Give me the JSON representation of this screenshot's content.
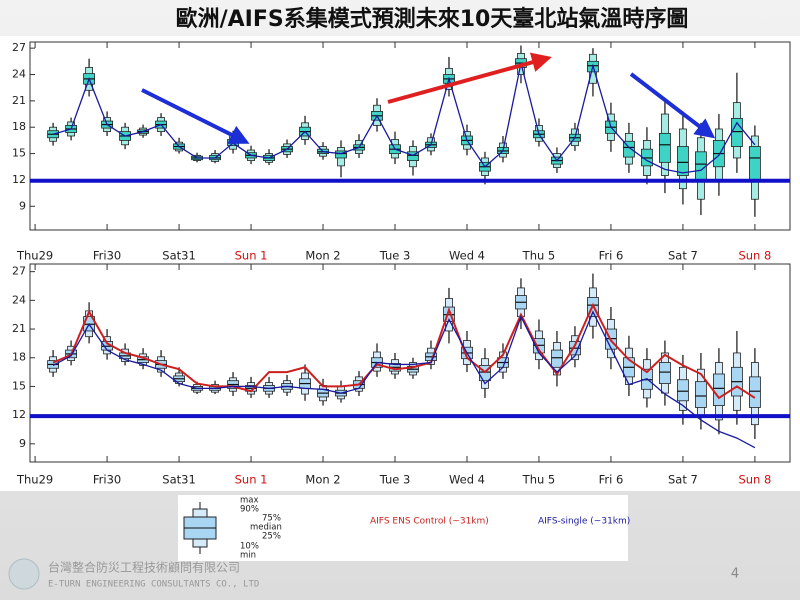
{
  "title": "歐洲/AIFS系集模式預測未來10天臺北站氣溫時序圖",
  "footer": {
    "company": "台灣整合防災工程技術顧問有限公司",
    "company_en": "E-TURN ENGINEERING CONSULTANTS CO., LTD",
    "page_number": 4
  },
  "chart_data": [
    {
      "type": "boxplot",
      "xlim": [
        -1.7,
        251.7
      ],
      "ylim": [
        6.3,
        27.7
      ],
      "yticks": [
        9,
        12,
        15,
        18,
        21,
        24,
        27
      ],
      "xticks": [
        {
          "value": 0,
          "label": "Thu29"
        },
        {
          "value": 24,
          "label": "Fri30"
        },
        {
          "value": 48,
          "label": "Sat31"
        },
        {
          "value": 72,
          "label": "Sun 1"
        },
        {
          "value": 96,
          "label": "Mon 2"
        },
        {
          "value": 120,
          "label": "Tue 3"
        },
        {
          "value": 144,
          "label": "Wed 4"
        },
        {
          "value": 168,
          "label": "Thu 5"
        },
        {
          "value": 192,
          "label": "Fri 6"
        },
        {
          "value": 216,
          "label": "Sat 7"
        },
        {
          "value": 240,
          "label": "Sun 8"
        }
      ],
      "highlight_xticks": [
        72,
        240
      ],
      "hline": 11.9,
      "hline_color": "#1010c8",
      "box_color": "#3fd3c6",
      "box_outer_color": "#a6ece5",
      "x": [
        6,
        12,
        18,
        24,
        30,
        36,
        42,
        48,
        54,
        60,
        66,
        72,
        78,
        84,
        90,
        96,
        102,
        108,
        114,
        120,
        126,
        132,
        138,
        144,
        150,
        156,
        162,
        168,
        174,
        180,
        186,
        192,
        198,
        204,
        210,
        216,
        222,
        228,
        234,
        240
      ],
      "min": [
        15.9,
        16.5,
        21.5,
        17.0,
        15.5,
        16.8,
        17.0,
        15.0,
        14.0,
        13.9,
        15.0,
        13.8,
        13.7,
        14.5,
        16.0,
        14.3,
        12.3,
        14.5,
        17.5,
        13.8,
        12.5,
        14.8,
        21.5,
        14.8,
        11.5,
        14.0,
        23.0,
        15.8,
        12.8,
        15.3,
        21.5,
        15.2,
        12.8,
        11.5,
        10.5,
        9.2,
        8.0,
        10.2,
        12.8,
        7.8
      ],
      "p10": [
        16.4,
        17.0,
        22.2,
        17.5,
        16.0,
        17.1,
        17.5,
        15.3,
        14.2,
        14.1,
        15.5,
        14.2,
        14.0,
        14.9,
        16.6,
        14.7,
        13.6,
        15.0,
        18.2,
        14.5,
        13.5,
        15.3,
        22.3,
        15.5,
        12.5,
        14.6,
        24.0,
        16.4,
        13.4,
        15.9,
        23.0,
        16.5,
        13.8,
        12.5,
        12.5,
        11.0,
        9.8,
        11.8,
        14.5,
        9.8
      ],
      "p25": [
        16.8,
        17.4,
        22.9,
        17.9,
        16.5,
        17.3,
        17.9,
        15.5,
        14.3,
        14.3,
        15.9,
        14.5,
        14.2,
        15.2,
        17.0,
        15.0,
        14.5,
        15.4,
        18.8,
        15.0,
        14.2,
        15.7,
        23.0,
        16.0,
        13.0,
        15.0,
        24.8,
        16.8,
        13.8,
        16.4,
        24.3,
        17.3,
        14.6,
        13.6,
        14.0,
        12.5,
        11.8,
        13.5,
        15.8,
        12.0
      ],
      "median": [
        17.2,
        17.8,
        23.5,
        18.3,
        17,
        17.5,
        18.3,
        15.8,
        14.5,
        14.5,
        16.2,
        14.8,
        14.5,
        15.5,
        17.5,
        15.2,
        15,
        15.7,
        19.3,
        15.5,
        14.8,
        16,
        23.5,
        16.5,
        13.5,
        15.3,
        25.3,
        17.2,
        14.2,
        16.8,
        25,
        18,
        15.7,
        14.5,
        16,
        14,
        13.8,
        15,
        17.5,
        14.5
      ],
      "p75": [
        17.6,
        18.2,
        24.1,
        18.7,
        17.5,
        17.7,
        18.7,
        16.1,
        14.7,
        14.8,
        16.6,
        15.1,
        14.8,
        15.8,
        18.0,
        15.5,
        15.3,
        16.0,
        19.8,
        16.0,
        15.2,
        16.3,
        24.0,
        17.0,
        14.0,
        15.7,
        25.8,
        17.6,
        14.6,
        17.2,
        25.5,
        18.7,
        16.4,
        15.5,
        17.3,
        15.8,
        15.2,
        16.5,
        19.0,
        15.8
      ],
      "p90": [
        18.0,
        18.6,
        24.8,
        19.1,
        18.0,
        17.9,
        19.1,
        16.3,
        14.8,
        15.0,
        17.0,
        15.4,
        15.0,
        16.1,
        18.5,
        15.8,
        15.7,
        16.5,
        20.5,
        16.6,
        15.8,
        16.8,
        24.7,
        17.5,
        14.5,
        16.2,
        26.4,
        18.2,
        15.0,
        17.8,
        26.3,
        19.5,
        17.3,
        16.5,
        19.5,
        17.8,
        16.8,
        17.8,
        20.8,
        17.0
      ],
      "max": [
        18.5,
        19.1,
        25.8,
        19.8,
        18.5,
        18.3,
        19.6,
        16.8,
        15.1,
        15.4,
        17.6,
        15.9,
        15.5,
        16.6,
        19.3,
        16.3,
        16.5,
        17.2,
        21.3,
        17.5,
        16.5,
        17.3,
        26.0,
        18.3,
        15.2,
        17.0,
        27.3,
        19.0,
        15.7,
        18.5,
        27.0,
        20.8,
        18.5,
        18.0,
        21.0,
        19.8,
        18.5,
        19.5,
        24.2,
        18.2
      ],
      "series": [
        {
          "color": "#1a1aa0",
          "values": [
            17.2,
            17.8,
            23.5,
            18.3,
            17,
            17.5,
            18.3,
            15.8,
            14.5,
            14.5,
            16.2,
            14.8,
            14.5,
            15.5,
            17.5,
            15.2,
            15,
            15.7,
            19.3,
            15.5,
            14.8,
            16,
            23.5,
            16.5,
            13.5,
            15.3,
            25.3,
            17.2,
            14.2,
            16.8,
            25,
            18,
            15.7,
            14.2,
            13.2,
            12.8,
            13.1,
            14.8,
            18.5,
            16
          ]
        }
      ]
    },
    {
      "type": "boxplot",
      "xlim": [
        -1.7,
        251.7
      ],
      "ylim": [
        7.1,
        27.8
      ],
      "yticks": [
        9,
        12,
        15,
        18,
        21,
        24,
        27
      ],
      "xticks": [
        {
          "value": 0,
          "label": "Thu29"
        },
        {
          "value": 24,
          "label": "Fri30"
        },
        {
          "value": 48,
          "label": "Sat31"
        },
        {
          "value": 72,
          "label": "Sun 1"
        },
        {
          "value": 96,
          "label": "Mon 2"
        },
        {
          "value": 120,
          "label": "Tue 3"
        },
        {
          "value": 144,
          "label": "Wed 4"
        },
        {
          "value": 168,
          "label": "Thu 5"
        },
        {
          "value": 192,
          "label": "Fri 6"
        },
        {
          "value": 216,
          "label": "Sat 7"
        },
        {
          "value": 240,
          "label": "Sun 8"
        }
      ],
      "highlight_xticks": [
        72,
        240
      ],
      "hline": 11.9,
      "hline_color": "#1010c8",
      "box_color": "#a9d6f2",
      "box_outer_color": "#d5ebf9",
      "box_legend": [
        "max",
        "90%",
        "75%",
        "median",
        "25%",
        "10%",
        "min"
      ],
      "x": [
        6,
        12,
        18,
        24,
        30,
        36,
        42,
        48,
        54,
        60,
        66,
        72,
        78,
        84,
        90,
        96,
        102,
        108,
        114,
        120,
        126,
        132,
        138,
        144,
        150,
        156,
        162,
        168,
        174,
        180,
        186,
        192,
        198,
        204,
        210,
        216,
        222,
        228,
        234,
        240
      ],
      "min": [
        16.0,
        17.2,
        19.5,
        17.8,
        17.2,
        16.8,
        16.0,
        15.0,
        14.2,
        14.2,
        14.0,
        13.8,
        13.8,
        14.0,
        13.5,
        13.0,
        13.3,
        14.0,
        16.0,
        15.8,
        15.8,
        16.8,
        19.5,
        16.5,
        13.8,
        15.8,
        21.0,
        16.8,
        15.0,
        17.0,
        20.0,
        16.8,
        14.0,
        12.8,
        13.0,
        11.0,
        10.5,
        10.0,
        11.0,
        9.5
      ],
      "p10": [
        16.5,
        17.7,
        20.2,
        18.4,
        17.6,
        17.2,
        16.5,
        15.3,
        14.4,
        14.4,
        14.5,
        14.2,
        14.2,
        14.4,
        14.2,
        13.5,
        13.7,
        14.5,
        16.6,
        16.3,
        16.2,
        17.3,
        20.8,
        17.3,
        14.8,
        16.5,
        22.3,
        17.8,
        16.2,
        17.8,
        21.3,
        18.0,
        15.2,
        13.8,
        14.3,
        12.5,
        11.8,
        11.5,
        12.5,
        11.0
      ],
      "p25": [
        16.9,
        18.0,
        20.8,
        18.8,
        17.9,
        17.5,
        16.9,
        15.5,
        14.6,
        14.6,
        14.8,
        14.5,
        14.5,
        14.7,
        14.8,
        13.9,
        14.0,
        14.8,
        17.0,
        16.6,
        16.5,
        17.7,
        21.8,
        17.9,
        15.6,
        17.0,
        23.1,
        18.5,
        17.0,
        18.3,
        22.3,
        18.9,
        16.0,
        14.7,
        15.3,
        13.5,
        12.8,
        13.0,
        14.0,
        12.8
      ],
      "median": [
        17.3,
        18.4,
        21.5,
        19.2,
        18.2,
        17.8,
        17.3,
        15.8,
        14.8,
        14.8,
        15.2,
        14.8,
        14.8,
        15,
        15.3,
        14.3,
        14.3,
        15.2,
        17.5,
        17,
        16.8,
        18.1,
        22.5,
        18.5,
        16.5,
        17.5,
        23.8,
        19.3,
        18,
        19,
        23.5,
        20,
        17,
        15.7,
        16.5,
        14.5,
        14,
        14.8,
        15.5,
        14.5
      ],
      "p75": [
        17.7,
        18.8,
        22.3,
        19.7,
        18.5,
        18.1,
        17.7,
        16.1,
        15.0,
        15.0,
        15.6,
        15.1,
        15.1,
        15.3,
        15.8,
        14.7,
        14.6,
        15.6,
        18.0,
        17.4,
        17.1,
        18.5,
        23.3,
        19.1,
        17.2,
        18.0,
        24.5,
        20.0,
        18.8,
        19.7,
        24.3,
        21.0,
        18.0,
        16.8,
        17.5,
        15.7,
        15.5,
        16.3,
        17.0,
        16.0
      ],
      "p90": [
        18.1,
        19.2,
        22.9,
        20.2,
        18.9,
        18.4,
        18.1,
        16.4,
        15.2,
        15.2,
        15.9,
        15.4,
        15.4,
        15.6,
        16.4,
        15.1,
        15.0,
        16.0,
        18.6,
        17.8,
        17.5,
        19.0,
        24.2,
        19.8,
        17.9,
        18.6,
        25.3,
        20.8,
        19.6,
        20.3,
        25.3,
        22.0,
        19.0,
        17.8,
        18.5,
        17.0,
        16.8,
        17.5,
        18.5,
        17.5
      ],
      "max": [
        18.8,
        19.8,
        23.8,
        21.0,
        19.5,
        19.0,
        18.8,
        17.0,
        15.5,
        15.6,
        16.5,
        16.0,
        16.0,
        16.2,
        17.3,
        15.8,
        15.6,
        16.6,
        19.5,
        18.5,
        18.0,
        19.8,
        25.3,
        20.8,
        19.0,
        19.5,
        26.3,
        22.0,
        20.8,
        21.3,
        26.8,
        23.3,
        20.3,
        19.0,
        19.8,
        18.3,
        18.5,
        19.0,
        20.8,
        19.0
      ],
      "series": [
        {
          "name": "AIFS ENS Control (~31km)",
          "color": "#cc1f1f",
          "values": [
            17.5,
            18.3,
            22.8,
            19.5,
            18.5,
            18,
            17.3,
            16.8,
            15.3,
            15,
            15,
            14.5,
            16.5,
            16.5,
            17,
            15,
            15,
            15.2,
            17.3,
            16.8,
            17,
            17.5,
            23,
            18,
            16.5,
            18.3,
            22.5,
            18.8,
            16.3,
            19.3,
            23.5,
            19.8,
            17.8,
            16.5,
            18.3,
            17.2,
            16.3,
            13.8,
            15,
            13.8
          ]
        },
        {
          "name": "AIFS-single (~31km)",
          "color": "#1a1aa0",
          "values": [
            17.2,
            18.2,
            21.5,
            18.8,
            17.8,
            17.3,
            16.7,
            15.3,
            14.8,
            14.8,
            15,
            15,
            14.8,
            15,
            14.8,
            14.7,
            14.3,
            14.8,
            17.5,
            17.3,
            17.3,
            17.5,
            22,
            18.5,
            15.3,
            17,
            22.3,
            18.5,
            16.5,
            18.2,
            22.8,
            19,
            15.2,
            15.8,
            14.2,
            13,
            11.5,
            10.3,
            9.6,
            8.6
          ]
        }
      ]
    }
  ]
}
